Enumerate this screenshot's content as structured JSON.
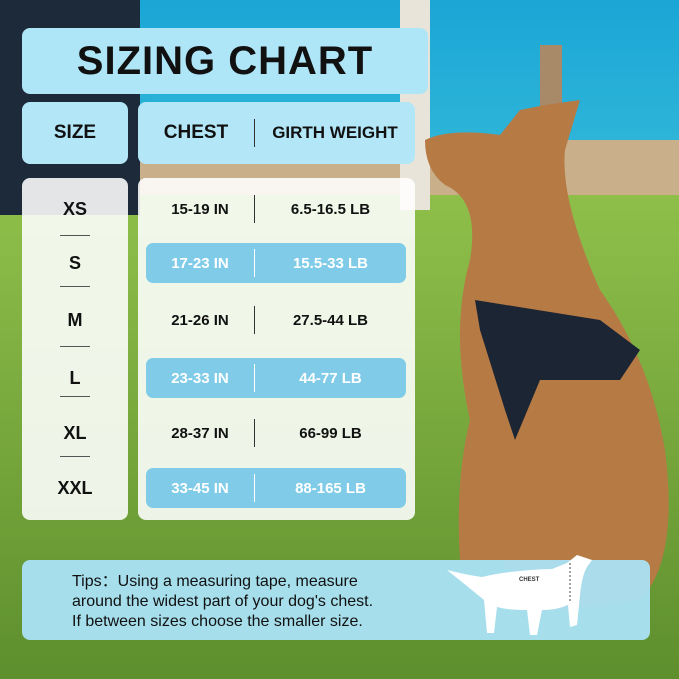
{
  "title": "SIZING CHART",
  "headers": {
    "size": "SIZE",
    "chest": "CHEST",
    "weight": "GIRTH WEIGHT"
  },
  "rows": [
    {
      "size": "XS",
      "chest": "15-19 IN",
      "weight": "6.5-16.5 LB",
      "highlighted": false
    },
    {
      "size": "S",
      "chest": "17-23 IN",
      "weight": "15.5-33 LB",
      "highlighted": true
    },
    {
      "size": "M",
      "chest": "21-26 IN",
      "weight": "27.5-44 LB",
      "highlighted": false
    },
    {
      "size": "L",
      "chest": "23-33 IN",
      "weight": "44-77 LB",
      "highlighted": true
    },
    {
      "size": "XL",
      "chest": "28-37 IN",
      "weight": "66-99 LB",
      "highlighted": false
    },
    {
      "size": "XXL",
      "chest": "33-45 IN",
      "weight": "88-165 LB",
      "highlighted": true
    }
  ],
  "tips": {
    "line1": "Tips：Using a measuring tape, measure",
    "line2": "around the widest part of your dog's chest.",
    "line3": "If between sizes choose the smaller size.",
    "diagram_label": "CHEST"
  },
  "colors": {
    "header": "#aee6f7",
    "highlight_row": "#80cce8"
  }
}
